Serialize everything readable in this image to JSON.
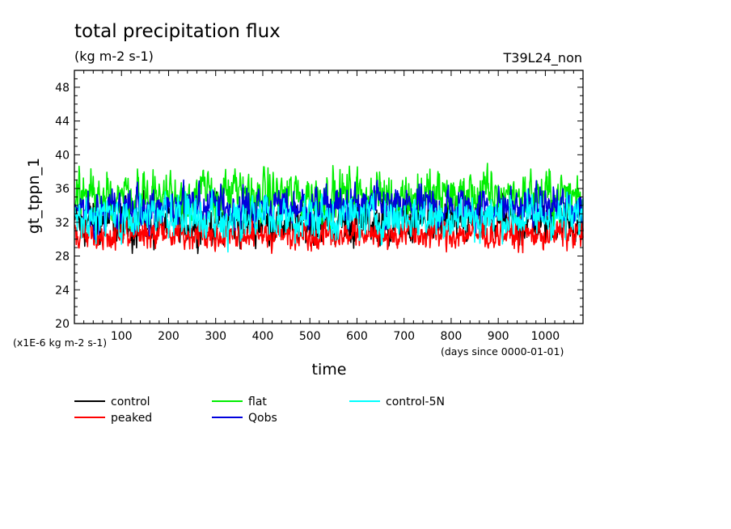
{
  "chart_data": {
    "type": "line",
    "title": "total precipitation flux",
    "subtitle": "(kg m-2 s-1)",
    "annotation_right": "T39L24_non",
    "xlabel": "time",
    "ylabel": "gt_tppn_1",
    "y_scale_label": "(x1E-6 kg m-2 s-1)",
    "x_unit_label": "(days since 0000-01-01)",
    "xlim": [
      0,
      1080
    ],
    "ylim": [
      20,
      50
    ],
    "x_ticks": [
      100,
      200,
      300,
      400,
      500,
      600,
      700,
      800,
      900,
      1000
    ],
    "y_ticks": [
      20,
      24,
      28,
      32,
      36,
      40,
      44,
      48
    ],
    "grid": false,
    "legend_position": "bottom-left",
    "series": [
      {
        "name": "control",
        "color": "#000000",
        "mean": 32.0,
        "spread": 1.5,
        "min": 28.3,
        "max": 35.8
      },
      {
        "name": "peaked",
        "color": "#ff0000",
        "mean": 30.6,
        "spread": 1.0,
        "min": 26.8,
        "max": 33.5
      },
      {
        "name": "flat",
        "color": "#00ee00",
        "mean": 35.2,
        "spread": 1.6,
        "min": 31.0,
        "max": 40.5
      },
      {
        "name": "Qobs",
        "color": "#0000dd",
        "mean": 33.8,
        "spread": 1.3,
        "min": 30.0,
        "max": 37.0
      },
      {
        "name": "control-5N",
        "color": "#00ffff",
        "mean": 32.6,
        "spread": 1.4,
        "min": 28.0,
        "max": 36.0
      }
    ]
  }
}
